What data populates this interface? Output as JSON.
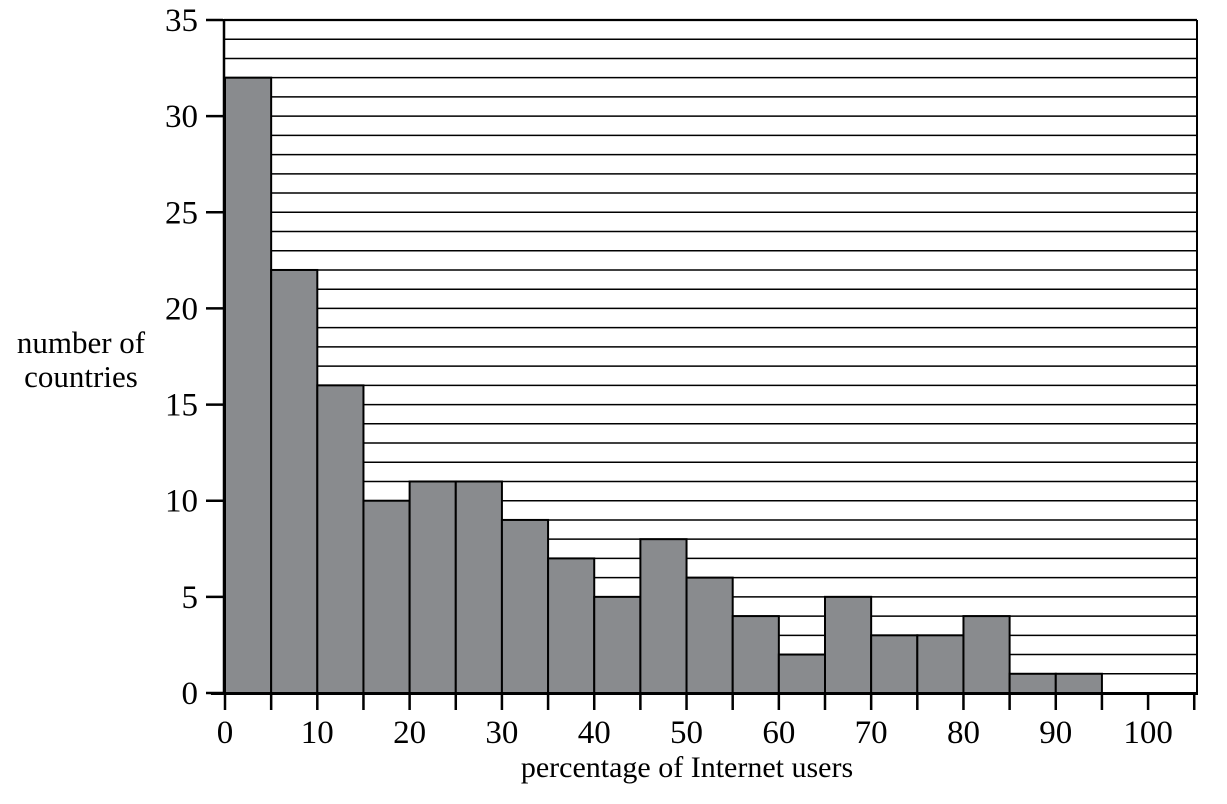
{
  "figure": {
    "background": "#ffffff"
  },
  "chart_data": {
    "type": "bar",
    "chart_kind": "histogram",
    "title": "",
    "xlabel": "percentage of Internet users",
    "ylabel": "number of countries",
    "ylabel_lines": [
      "number of",
      "countries"
    ],
    "categories": [
      "0-5",
      "5-10",
      "10-15",
      "15-20",
      "20-25",
      "25-30",
      "30-35",
      "35-40",
      "40-45",
      "45-50",
      "50-55",
      "55-60",
      "60-65",
      "65-70",
      "70-75",
      "75-80",
      "80-85",
      "85-90",
      "90-95",
      "95-100"
    ],
    "values": [
      32,
      22,
      16,
      10,
      11,
      11,
      9,
      7,
      5,
      8,
      6,
      4,
      2,
      5,
      3,
      3,
      4,
      1,
      1,
      0
    ],
    "bin_start": 0,
    "bin_width": 5,
    "xlim": [
      0,
      105.3
    ],
    "ylim": [
      0,
      35
    ],
    "x_tick_step": 5,
    "x_tick_max": 105,
    "x_label_step": 10,
    "x_tick_labels": [
      "0",
      "10",
      "20",
      "30",
      "40",
      "50",
      "60",
      "70",
      "80",
      "90",
      "100"
    ],
    "y_tick_step": 5,
    "y_tick_labels": [
      "0",
      "5",
      "10",
      "15",
      "20",
      "25",
      "30",
      "35"
    ],
    "y_grid_step": 1,
    "grid_on": true,
    "legend": null,
    "colors": {
      "bar_fill": "#898b8e",
      "bar_stroke": "#000000",
      "grid_color": "#000000",
      "axis_color": "#000000",
      "background": "#ffffff"
    }
  }
}
